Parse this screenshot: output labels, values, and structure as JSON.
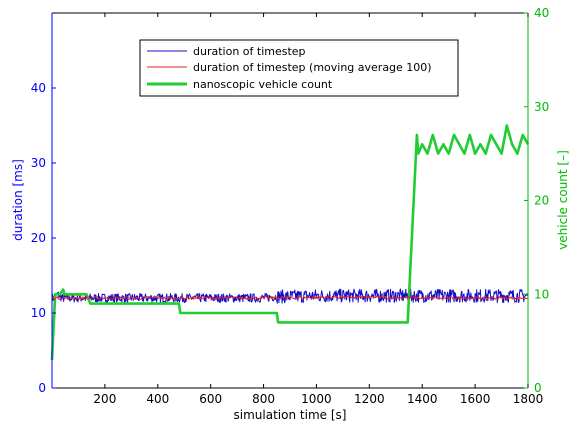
{
  "chart_data": {
    "type": "line",
    "title": "",
    "xlabel": "simulation time [s]",
    "ylabel_left": "duration [ms]",
    "ylabel_right": "vehicle count [–]",
    "xlim": [
      0,
      1800
    ],
    "ylim_left": [
      0,
      50
    ],
    "ylim_right": [
      0,
      40
    ],
    "x_ticks": [
      200,
      400,
      600,
      800,
      1000,
      1200,
      1400,
      1600,
      1800
    ],
    "y_left_ticks": [
      0,
      10,
      20,
      30,
      40
    ],
    "y_right_ticks": [
      0,
      10,
      20,
      30,
      40
    ],
    "grid": false,
    "legend_position": "top-center",
    "colors": {
      "left_axis": "#0000ff",
      "right_axis": "#00bb00",
      "duration": "#1010c8",
      "moving_average": "#e8202a",
      "vehicle_count": "#22cc33"
    },
    "series": [
      {
        "name": "duration of timestep",
        "axis": "left",
        "style": "noisy",
        "x": [
          0,
          10,
          20,
          40,
          60,
          100,
          150,
          200,
          300,
          400,
          500,
          600,
          700,
          800,
          850,
          900,
          1000,
          1100,
          1200,
          1300,
          1350,
          1400,
          1500,
          1600,
          1700,
          1800
        ],
        "y": [
          12.0,
          12.0,
          12.5,
          12.0,
          12.0,
          12.0,
          12.0,
          12.0,
          12.0,
          12.0,
          12.0,
          12.0,
          12.0,
          12.0,
          12.2,
          12.2,
          12.3,
          12.3,
          12.3,
          12.3,
          12.3,
          12.3,
          12.3,
          12.3,
          12.3,
          12.3
        ]
      },
      {
        "name": "duration of timestep (moving average 100)",
        "axis": "left",
        "style": "smooth",
        "x": [
          0,
          100,
          200,
          400,
          600,
          800,
          1000,
          1200,
          1400,
          1600,
          1800
        ],
        "y": [
          12.0,
          12.0,
          12.0,
          12.0,
          12.0,
          12.0,
          12.1,
          12.1,
          12.0,
          12.0,
          12.0
        ]
      },
      {
        "name": "nanoscopic vehicle count",
        "axis": "right",
        "style": "thick",
        "x": [
          0,
          12,
          15,
          30,
          42,
          48,
          60,
          100,
          130,
          145,
          150,
          480,
          485,
          850,
          855,
          1345,
          1380,
          1385,
          1400,
          1420,
          1440,
          1460,
          1480,
          1500,
          1520,
          1540,
          1560,
          1580,
          1600,
          1620,
          1640,
          1660,
          1680,
          1700,
          1720,
          1740,
          1760,
          1780,
          1800
        ],
        "y": [
          3,
          10,
          10,
          10,
          10.5,
          10,
          10,
          10,
          10,
          9,
          9,
          9,
          8,
          8,
          7,
          7,
          27,
          25,
          26,
          25,
          27,
          25,
          26,
          25,
          27,
          26,
          25,
          27,
          25,
          26,
          25,
          27,
          26,
          25,
          28,
          26,
          25,
          27,
          26
        ]
      }
    ]
  }
}
